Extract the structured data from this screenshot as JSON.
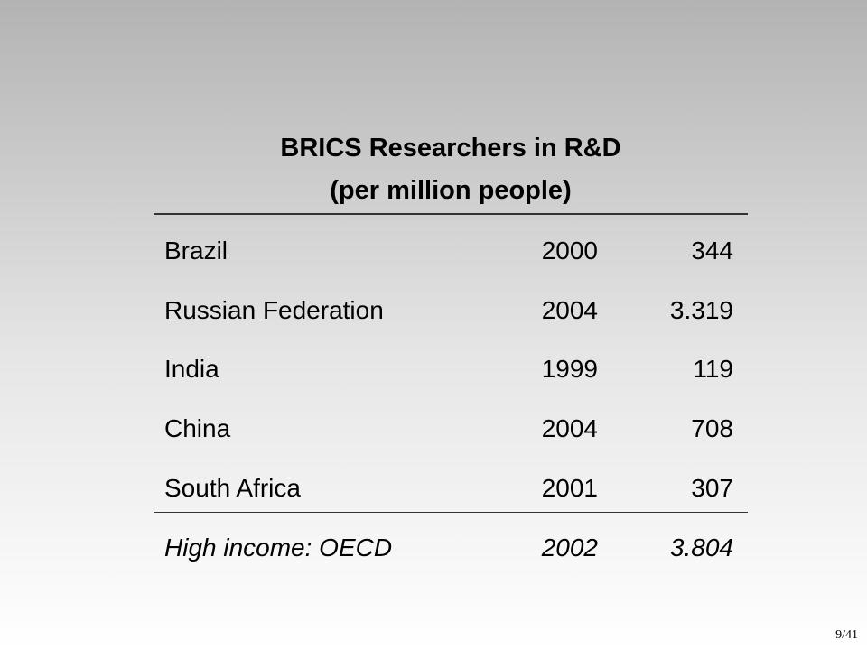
{
  "table": {
    "title": [
      "BRICS Researchers in R&D",
      "(per million people)"
    ],
    "rows": [
      [
        "Brazil",
        "2000",
        "344"
      ],
      [
        "Russian Federation",
        "2004",
        "3.319"
      ],
      [
        "India",
        "1999",
        "119"
      ],
      [
        "China",
        "2004",
        "708"
      ],
      [
        "South Africa",
        "2001",
        "307"
      ]
    ],
    "summary_row": [
      "High income: OECD",
      "2002",
      "3.804"
    ]
  },
  "page_number": "9/41"
}
